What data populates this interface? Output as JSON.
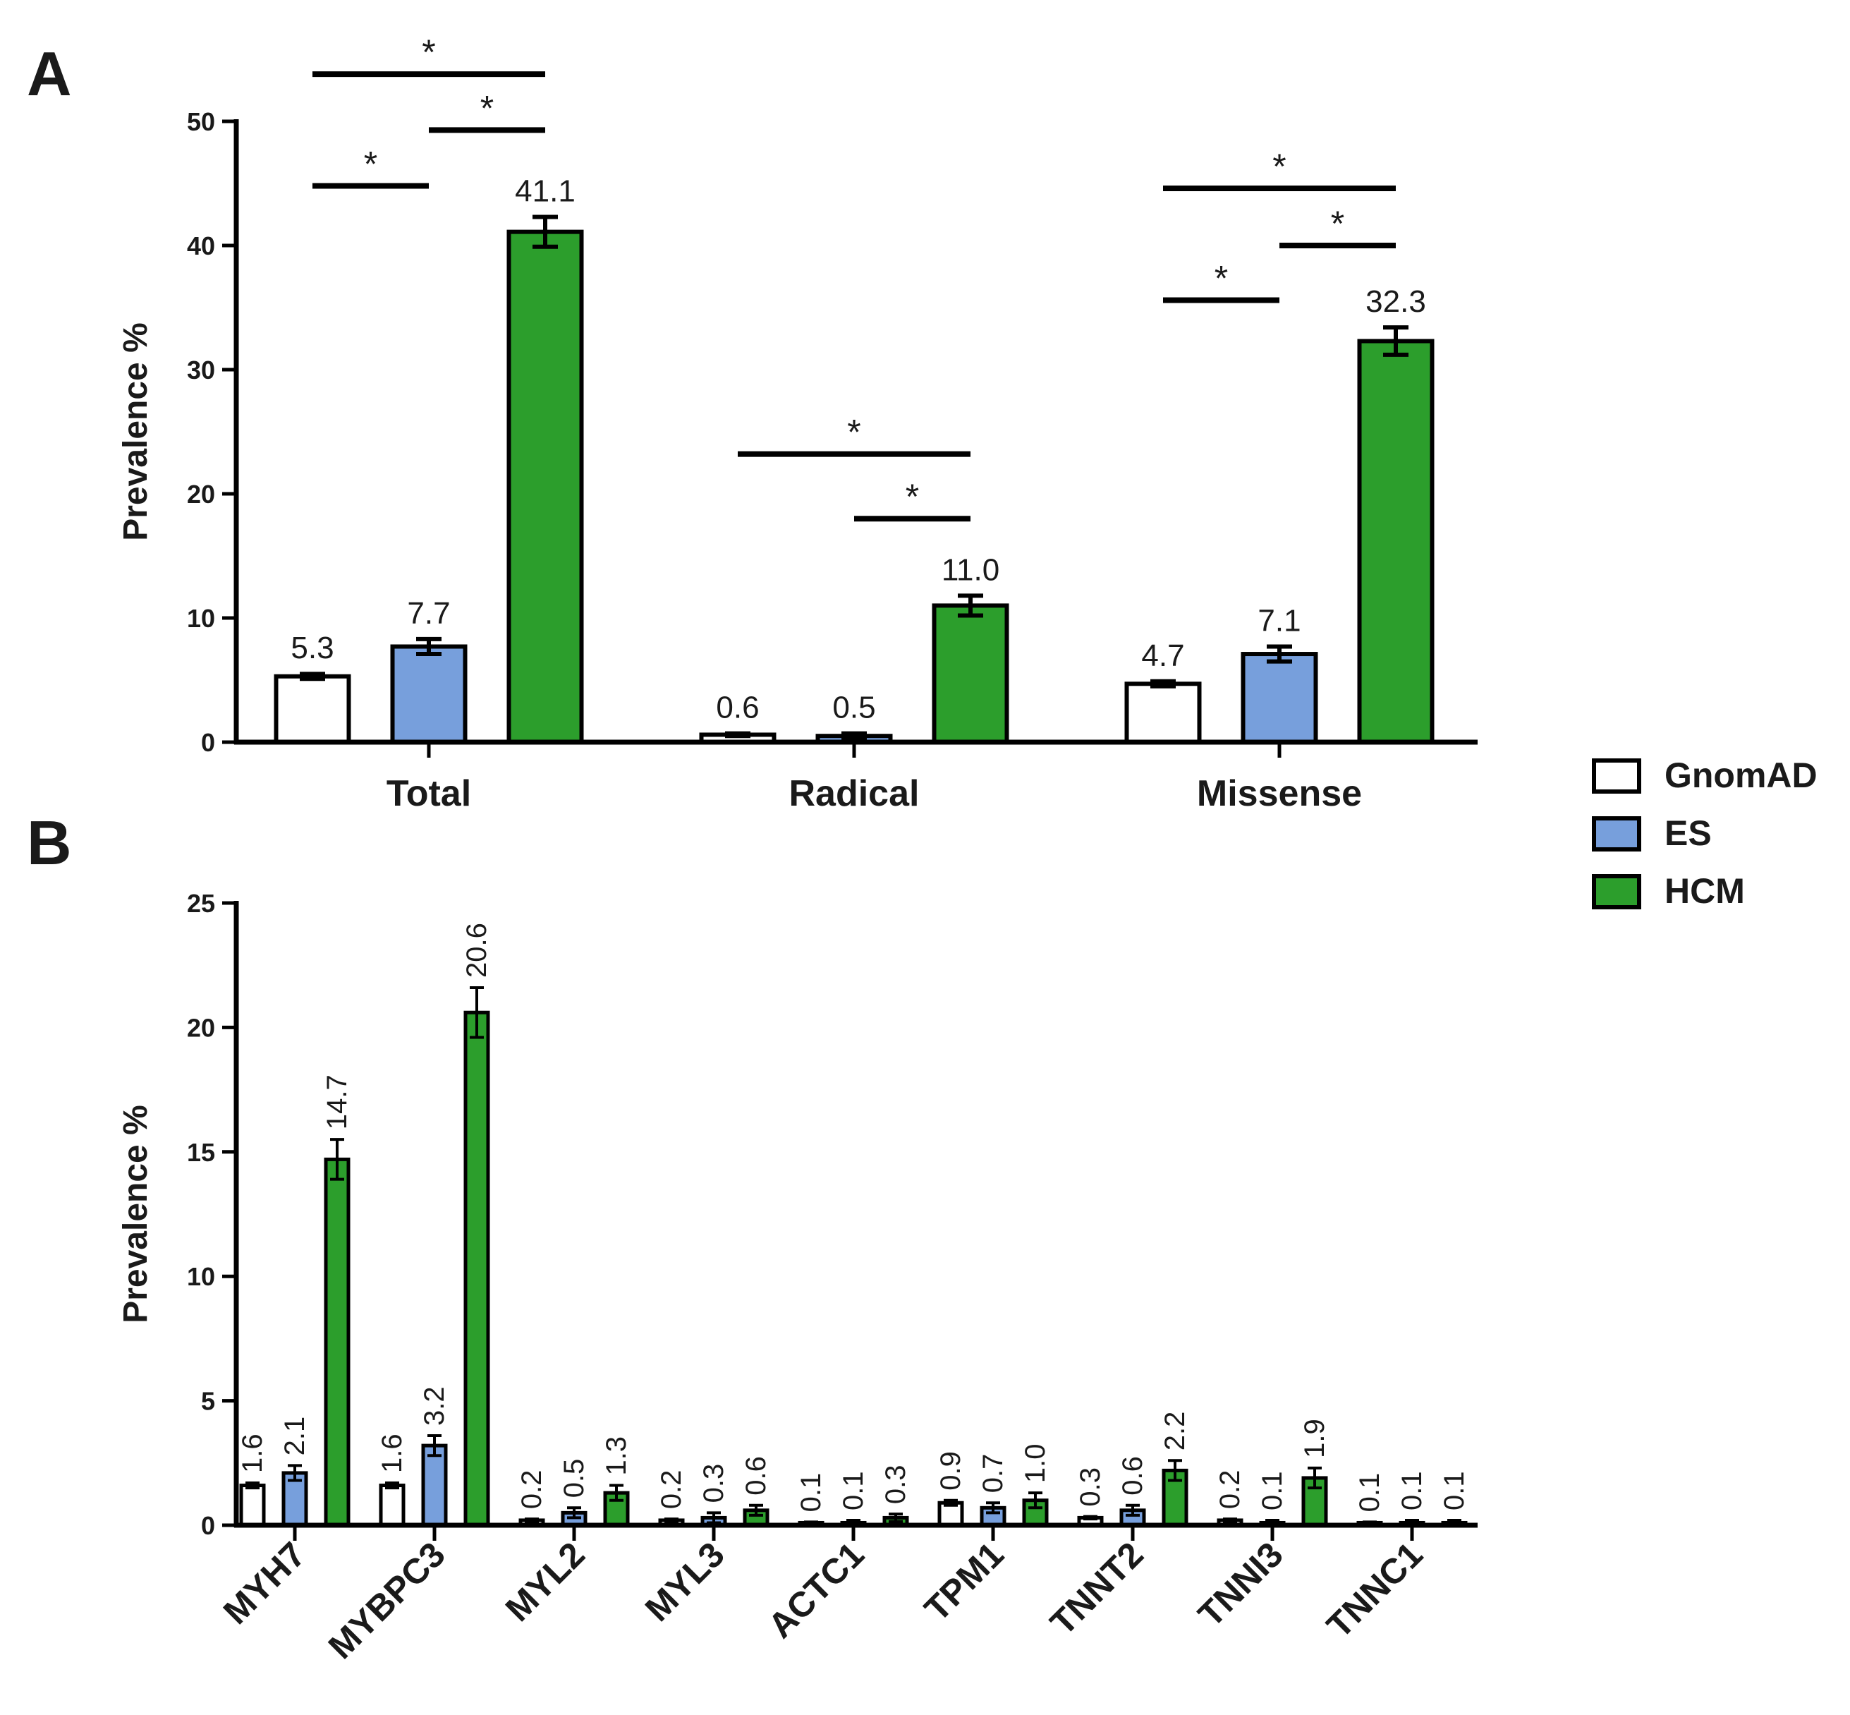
{
  "colors": {
    "GnomAD": "#ffffff",
    "ES": "#779fdc",
    "HCM": "#2c9e2c",
    "axis": "#000000"
  },
  "legend": {
    "items": [
      "GnomAD",
      "ES",
      "HCM"
    ]
  },
  "chart_data": [
    {
      "panel": "A",
      "type": "bar",
      "ylabel": "Prevalence %",
      "ylim": [
        0,
        50
      ],
      "yticks": [
        0,
        10,
        20,
        30,
        40,
        50
      ],
      "categories": [
        "Total",
        "Radical",
        "Missense"
      ],
      "series": [
        {
          "name": "GnomAD",
          "values": [
            5.3,
            0.6,
            4.7
          ],
          "errors": [
            0.2,
            0.1,
            0.2
          ],
          "labels": [
            "5.3",
            "0.6",
            "4.7"
          ]
        },
        {
          "name": "ES",
          "values": [
            7.7,
            0.5,
            7.1
          ],
          "errors": [
            0.6,
            0.2,
            0.6
          ],
          "labels": [
            "7.7",
            "0.5",
            "7.1"
          ]
        },
        {
          "name": "HCM",
          "values": [
            41.1,
            11.0,
            32.3
          ],
          "errors": [
            1.2,
            0.8,
            1.1
          ],
          "labels": [
            "41.1",
            "11.0",
            "32.3"
          ]
        }
      ],
      "significance": [
        {
          "category": "Total",
          "from": "GnomAD",
          "to": "HCM",
          "y": 53.8,
          "mark": "*"
        },
        {
          "category": "Total",
          "from": "ES",
          "to": "HCM",
          "y": 49.3,
          "mark": "*"
        },
        {
          "category": "Total",
          "from": "GnomAD",
          "to": "ES",
          "y": 44.8,
          "mark": "*"
        },
        {
          "category": "Radical",
          "from": "GnomAD",
          "to": "HCM",
          "y": 23.2,
          "mark": "*"
        },
        {
          "category": "Radical",
          "from": "ES",
          "to": "HCM",
          "y": 18.0,
          "mark": "*"
        },
        {
          "category": "Missense",
          "from": "GnomAD",
          "to": "HCM",
          "y": 44.6,
          "mark": "*"
        },
        {
          "category": "Missense",
          "from": "ES",
          "to": "HCM",
          "y": 40.0,
          "mark": "*"
        },
        {
          "category": "Missense",
          "from": "GnomAD",
          "to": "ES",
          "y": 35.6,
          "mark": "*"
        }
      ]
    },
    {
      "panel": "B",
      "type": "bar",
      "ylabel": "Prevalence %",
      "ylim": [
        0,
        25
      ],
      "yticks": [
        0,
        5,
        10,
        15,
        20,
        25
      ],
      "categories": [
        "MYH7",
        "MYBPC3",
        "MYL2",
        "MYL3",
        "ACTC1",
        "TPM1",
        "TNNT2",
        "TNNI3",
        "TNNC1"
      ],
      "series": [
        {
          "name": "GnomAD",
          "values": [
            1.6,
            1.6,
            0.2,
            0.2,
            0.1,
            0.9,
            0.3,
            0.2,
            0.1
          ],
          "errors": [
            0.1,
            0.1,
            0.05,
            0.05,
            0.03,
            0.1,
            0.05,
            0.05,
            0.03
          ],
          "labels": [
            "1.6",
            "1.6",
            "0.2",
            "0.2",
            "0.1",
            "0.9",
            "0.3",
            "0.2",
            "0.1"
          ]
        },
        {
          "name": "ES",
          "values": [
            2.1,
            3.2,
            0.5,
            0.3,
            0.1,
            0.7,
            0.6,
            0.1,
            0.1
          ],
          "errors": [
            0.3,
            0.4,
            0.2,
            0.2,
            0.1,
            0.2,
            0.2,
            0.1,
            0.1
          ],
          "labels": [
            "2.1",
            "3.2",
            "0.5",
            "0.3",
            "0.1",
            "0.7",
            "0.6",
            "0.1",
            "0.1"
          ]
        },
        {
          "name": "HCM",
          "values": [
            14.7,
            20.6,
            1.3,
            0.6,
            0.3,
            1.0,
            2.2,
            1.9,
            0.1
          ],
          "errors": [
            0.8,
            1.0,
            0.3,
            0.2,
            0.15,
            0.3,
            0.4,
            0.4,
            0.1
          ],
          "labels": [
            "14.7",
            "20.6",
            "1.3",
            "0.6",
            "0.3",
            "1.0",
            "2.2",
            "1.9",
            "0.1"
          ]
        }
      ]
    }
  ]
}
